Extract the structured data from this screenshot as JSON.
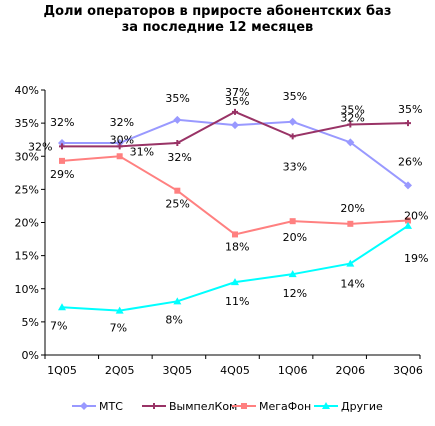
{
  "chart_data": {
    "type": "line",
    "title_line1": "Доли операторов в приросте абонентских баз",
    "title_line2": "за последние 12 месяцев",
    "categories": [
      "1Q05",
      "2Q05",
      "3Q05",
      "4Q05",
      "1Q06",
      "2Q06",
      "3Q06"
    ],
    "y_ticks": [
      "0%",
      "5%",
      "10%",
      "15%",
      "20%",
      "25%",
      "30%",
      "35%",
      "40%"
    ],
    "ylim": [
      0,
      40
    ],
    "grid": false,
    "legend_position": "bottom",
    "series": [
      {
        "name": "МТС",
        "color": "#9999ff",
        "marker": "diamond",
        "values": [
          32,
          32,
          35.5,
          34.7,
          35.2,
          32.1,
          25.6
        ],
        "labels": [
          "32%",
          "32%",
          "35%",
          "35%",
          "35%",
          "32%",
          "26%"
        ]
      },
      {
        "name": "ВымпелКом",
        "color": "#993366",
        "marker": "cross",
        "values": [
          31.5,
          31.5,
          32,
          36.7,
          33,
          34.8,
          35
        ],
        "labels": [
          "32%",
          "31%",
          "32%",
          "37%",
          "33%",
          "35%",
          "35%"
        ]
      },
      {
        "name": "МегаФон",
        "color": "#ff8080",
        "marker": "square",
        "values": [
          29.3,
          30,
          24.8,
          18.2,
          20.2,
          19.8,
          20.3
        ],
        "labels": [
          "29%",
          "30%",
          "25%",
          "18%",
          "20%",
          "20%",
          "20%"
        ]
      },
      {
        "name": "Другие",
        "color": "#00ffff",
        "marker": "triangle",
        "values": [
          7.2,
          6.7,
          8.1,
          11,
          12.2,
          13.8,
          19.5
        ],
        "labels": [
          "7%",
          "7%",
          "8%",
          "11%",
          "12%",
          "14%",
          "19%"
        ]
      }
    ]
  }
}
